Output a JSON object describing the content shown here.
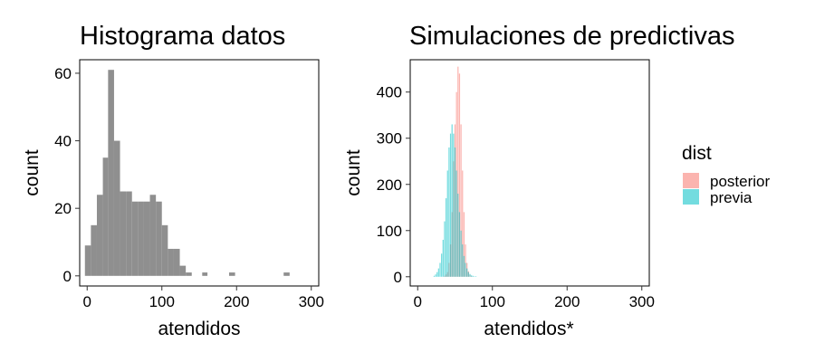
{
  "chart_data": [
    {
      "type": "bar",
      "title": "Histograma datos",
      "xlabel": "atendidos",
      "ylabel": "count",
      "xlim": [
        -10,
        310
      ],
      "ylim": [
        -3,
        64
      ],
      "xticks": [
        "0",
        "100",
        "200",
        "300"
      ],
      "xtick_values": [
        0,
        100,
        200,
        300
      ],
      "yticks": [
        "0",
        "20",
        "40",
        "60"
      ],
      "ytick_values": [
        0,
        20,
        40,
        60
      ],
      "grid": false,
      "color": "#8f8f8f",
      "bins": [
        {
          "x0": -3,
          "x1": 5,
          "count": 9
        },
        {
          "x0": 5,
          "x1": 13,
          "count": 15
        },
        {
          "x0": 13,
          "x1": 21,
          "count": 24
        },
        {
          "x0": 21,
          "x1": 28,
          "count": 35
        },
        {
          "x0": 28,
          "x1": 36,
          "count": 61
        },
        {
          "x0": 36,
          "x1": 44,
          "count": 40
        },
        {
          "x0": 44,
          "x1": 52,
          "count": 25
        },
        {
          "x0": 52,
          "x1": 60,
          "count": 25
        },
        {
          "x0": 60,
          "x1": 68,
          "count": 22
        },
        {
          "x0": 68,
          "x1": 76,
          "count": 22
        },
        {
          "x0": 76,
          "x1": 84,
          "count": 22
        },
        {
          "x0": 84,
          "x1": 92,
          "count": 24
        },
        {
          "x0": 92,
          "x1": 100,
          "count": 22
        },
        {
          "x0": 100,
          "x1": 108,
          "count": 15
        },
        {
          "x0": 108,
          "x1": 116,
          "count": 8
        },
        {
          "x0": 116,
          "x1": 124,
          "count": 8
        },
        {
          "x0": 124,
          "x1": 132,
          "count": 3
        },
        {
          "x0": 132,
          "x1": 140,
          "count": 1
        },
        {
          "x0": 154,
          "x1": 161,
          "count": 1
        },
        {
          "x0": 190,
          "x1": 198,
          "count": 1
        },
        {
          "x0": 263,
          "x1": 271,
          "count": 1
        }
      ]
    },
    {
      "type": "bar",
      "title": "Simulaciones de predictivas",
      "xlabel": "atendidos*",
      "ylabel": "count",
      "xlim": [
        -10,
        310
      ],
      "ylim": [
        -20,
        470
      ],
      "xticks": [
        "0",
        "100",
        "200",
        "300"
      ],
      "xtick_values": [
        0,
        100,
        200,
        300
      ],
      "yticks": [
        "0",
        "100",
        "200",
        "300",
        "400"
      ],
      "ytick_values": [
        0,
        100,
        200,
        300,
        400
      ],
      "grid": false,
      "legend": {
        "title": "dist",
        "placement": "right"
      },
      "bin_width": 1.5,
      "series": [
        {
          "name": "posterior",
          "color": "#F8766D",
          "x": [
            36,
            38,
            40,
            42,
            44,
            46,
            48,
            50,
            52,
            54,
            56,
            58,
            60,
            62,
            64,
            66,
            68,
            70,
            72
          ],
          "values": [
            2,
            5,
            10,
            30,
            70,
            140,
            250,
            330,
            400,
            455,
            440,
            330,
            230,
            140,
            70,
            30,
            12,
            4,
            1
          ]
        },
        {
          "name": "previa",
          "color": "#00BFC4",
          "x": [
            22,
            24,
            26,
            28,
            30,
            32,
            34,
            36,
            38,
            40,
            42,
            44,
            46,
            48,
            50,
            52,
            54,
            56,
            58,
            60,
            62,
            64,
            66,
            68,
            70,
            72,
            74,
            76,
            78
          ],
          "values": [
            2,
            5,
            10,
            18,
            30,
            50,
            80,
            120,
            170,
            230,
            280,
            310,
            330,
            310,
            280,
            230,
            180,
            140,
            100,
            70,
            45,
            30,
            18,
            10,
            6,
            3,
            2,
            1,
            1
          ]
        }
      ]
    }
  ]
}
